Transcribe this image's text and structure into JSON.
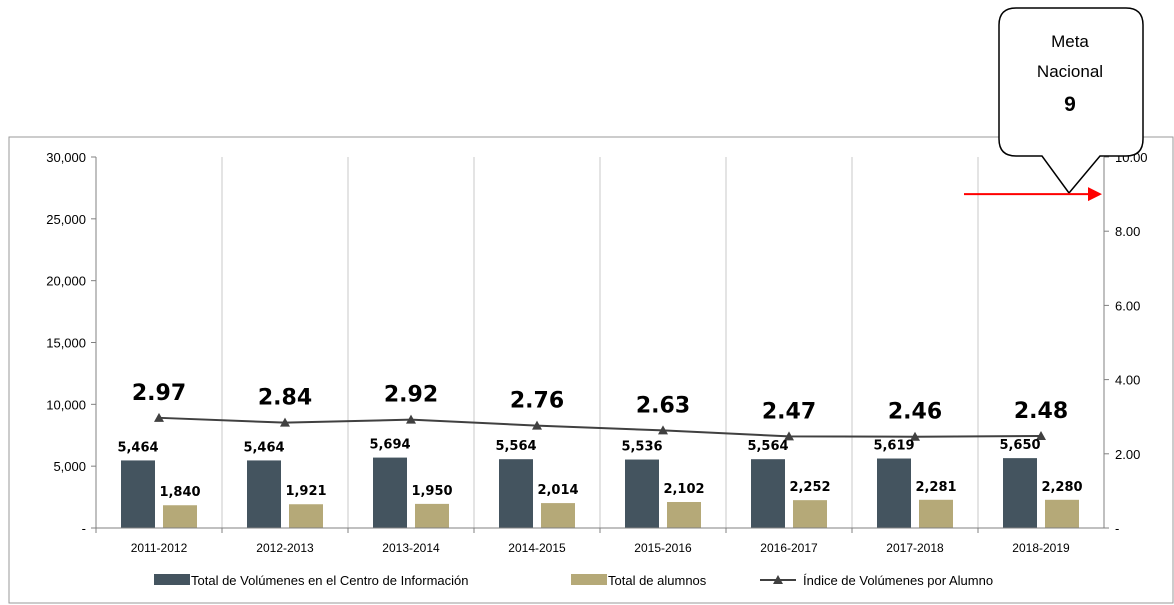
{
  "chart_data": {
    "type": "bar",
    "categories": [
      "2011-2012",
      "2012-2013",
      "2013-2014",
      "2014-2015",
      "2015-2016",
      "2016-2017",
      "2017-2018",
      "2018-2019"
    ],
    "series": [
      {
        "name": "Total de Volúmenes en el Centro de Información",
        "type": "bar",
        "axis": "left",
        "color": "#44545F",
        "values": [
          5464,
          5464,
          5694,
          5564,
          5536,
          5564,
          5619,
          5650
        ],
        "labels": [
          "5,464",
          "5,464",
          "5,694",
          "5,564",
          "5,536",
          "5,564",
          "5,619",
          "5,650"
        ]
      },
      {
        "name": "Total de alumnos",
        "type": "bar",
        "axis": "left",
        "color": "#B5A978",
        "values": [
          1840,
          1921,
          1950,
          2014,
          2102,
          2252,
          2281,
          2280
        ],
        "labels": [
          "1,840",
          "1,921",
          "1,950",
          "2,014",
          "2,102",
          "2,252",
          "2,281",
          "2,280"
        ]
      },
      {
        "name": "Índice de Volúmenes por Alumno",
        "type": "line",
        "axis": "right",
        "color": "#404040",
        "values": [
          2.97,
          2.84,
          2.92,
          2.76,
          2.63,
          2.47,
          2.46,
          2.48
        ],
        "labels": [
          "2.97",
          "2.84",
          "2.92",
          "2.76",
          "2.63",
          "2.47",
          "2.46",
          "2.48"
        ]
      }
    ],
    "y_left": {
      "min": 0,
      "max": 30000,
      "ticks": [
        0,
        5000,
        10000,
        15000,
        20000,
        25000,
        30000
      ],
      "tick_labels": [
        "-",
        "5,000",
        "10,000",
        "15,000",
        "20,000",
        "25,000",
        "30,000"
      ]
    },
    "y_right": {
      "min": 0,
      "max": 10,
      "ticks": [
        0,
        2,
        4,
        6,
        8,
        10
      ],
      "tick_labels": [
        "-",
        "2.00",
        "4.00",
        "6.00",
        "8.00",
        "10.00"
      ]
    },
    "vertical_gridlines": true,
    "legend_position": "bottom",
    "annotation": {
      "line1": "Meta",
      "line2": "Nacional",
      "value": "9",
      "target": 9,
      "arrow_color": "#FF0000"
    }
  }
}
